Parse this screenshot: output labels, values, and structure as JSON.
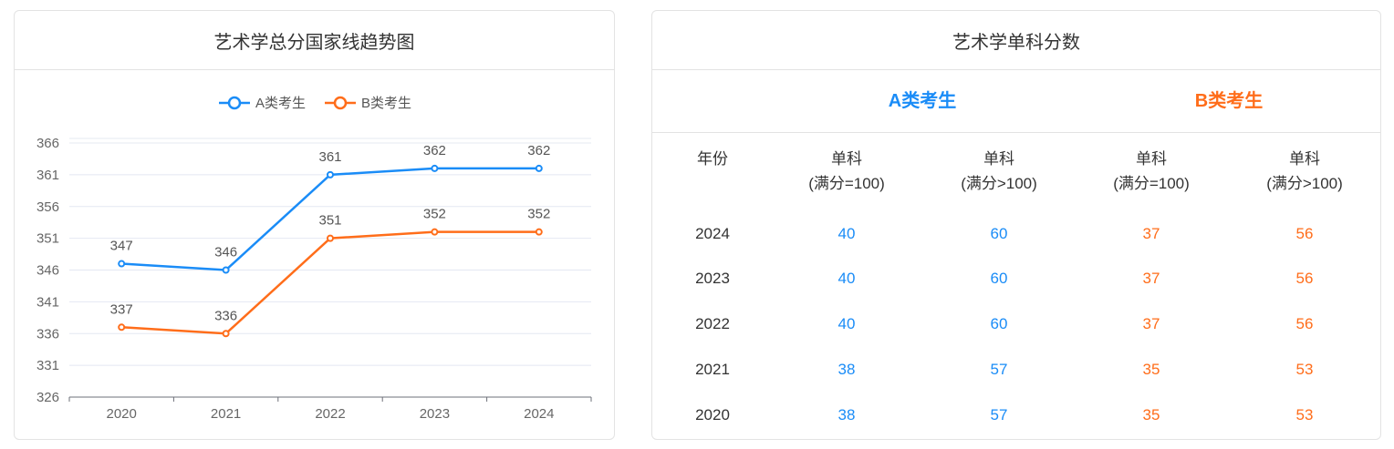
{
  "chart_data": {
    "type": "line",
    "title": "艺术学总分国家线趋势图",
    "categories": [
      "2020",
      "2021",
      "2022",
      "2023",
      "2024"
    ],
    "series": [
      {
        "name": "A类考生",
        "values": [
          347,
          346,
          361,
          362,
          362
        ],
        "color": "#1a8cf7"
      },
      {
        "name": "B类考生",
        "values": [
          337,
          336,
          351,
          352,
          352
        ],
        "color": "#ff6d1a"
      }
    ],
    "yticks": [
      326,
      331,
      336,
      341,
      346,
      351,
      356,
      361,
      366
    ],
    "ylim": [
      326,
      366
    ],
    "grid": true,
    "legend": "top-center"
  },
  "table": {
    "title": "艺术学单科分数",
    "groups": [
      {
        "label": "A类考生",
        "color": "#1a8cf7"
      },
      {
        "label": "B类考生",
        "color": "#ff6d1a"
      }
    ],
    "headers": [
      [
        "年份",
        ""
      ],
      [
        "单科",
        "(满分=100)"
      ],
      [
        "单科",
        "(满分>100)"
      ],
      [
        "单科",
        "(满分=100)"
      ],
      [
        "单科",
        "(满分>100)"
      ]
    ],
    "rows": [
      [
        "2024",
        "40",
        "60",
        "37",
        "56"
      ],
      [
        "2023",
        "40",
        "60",
        "37",
        "56"
      ],
      [
        "2022",
        "40",
        "60",
        "37",
        "56"
      ],
      [
        "2021",
        "38",
        "57",
        "35",
        "53"
      ],
      [
        "2020",
        "38",
        "57",
        "35",
        "53"
      ]
    ]
  }
}
